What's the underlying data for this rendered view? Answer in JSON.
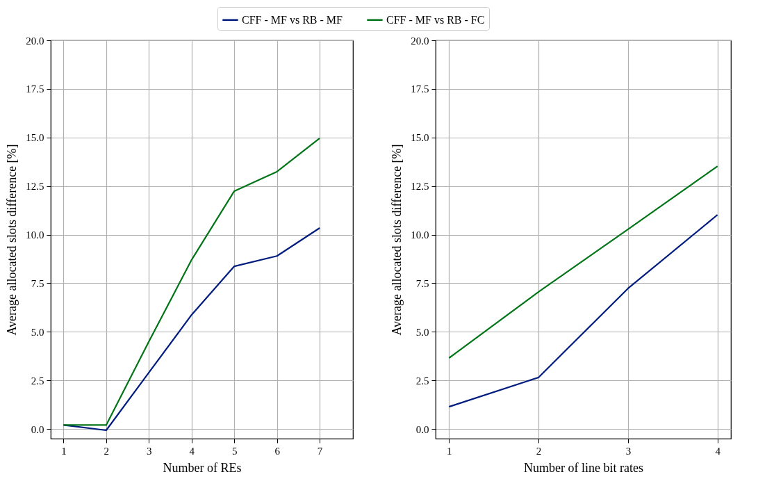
{
  "chart_data": [
    {
      "type": "line",
      "xlabel": "Number of REs",
      "ylabel": "Average allocated slots difference [%]",
      "x": [
        1,
        2,
        3,
        4,
        5,
        6,
        7
      ],
      "xlim": [
        0.7,
        7.78
      ],
      "xticks": [
        1,
        2,
        3,
        4,
        5,
        6,
        7
      ],
      "ylim": [
        -0.5,
        20
      ],
      "yticks": [
        {
          "value": 0,
          "label": "0.0"
        },
        {
          "value": 2.5,
          "label": "2.5"
        },
        {
          "value": 5,
          "label": "5.0"
        },
        {
          "value": 7.5,
          "label": "7.5"
        },
        {
          "value": 10,
          "label": "10.0"
        },
        {
          "value": 12.5,
          "label": "12.5"
        },
        {
          "value": 15,
          "label": "15.0"
        },
        {
          "value": 17.5,
          "label": "17.5"
        },
        {
          "value": 20,
          "label": "20.0"
        }
      ],
      "grid": true,
      "legend": "top",
      "series": [
        {
          "name": "CFF - MF vs RB - MF",
          "color": "#001c7f",
          "values": [
            0.2,
            -0.07,
            2.9,
            5.87,
            8.37,
            8.9,
            10.34
          ]
        },
        {
          "name": "CFF - MF vs RB - FC",
          "color": "#017517",
          "values": [
            0.2,
            0.2,
            4.5,
            8.7,
            12.24,
            13.24,
            14.96
          ]
        }
      ]
    },
    {
      "type": "line",
      "xlabel": "Number of line bit rates",
      "ylabel": "Average allocated slots difference [%]",
      "x": [
        1,
        2,
        3,
        4
      ],
      "xlim": [
        0.85,
        4.15
      ],
      "xticks": [
        1,
        2,
        3,
        4
      ],
      "ylim": [
        -0.5,
        20
      ],
      "yticks": [
        {
          "value": 0,
          "label": "0.0"
        },
        {
          "value": 2.5,
          "label": "2.5"
        },
        {
          "value": 5,
          "label": "5.0"
        },
        {
          "value": 7.5,
          "label": "7.5"
        },
        {
          "value": 10,
          "label": "10.0"
        },
        {
          "value": 12.5,
          "label": "12.5"
        },
        {
          "value": 15,
          "label": "15.0"
        },
        {
          "value": 17.5,
          "label": "17.5"
        },
        {
          "value": 20,
          "label": "20.0"
        }
      ],
      "grid": true,
      "series": [
        {
          "color": "#001c7f",
          "values": [
            1.14,
            2.65,
            7.23,
            11.02
          ]
        },
        {
          "color": "#017517",
          "values": [
            3.65,
            7.05,
            10.27,
            13.52
          ]
        }
      ]
    }
  ]
}
